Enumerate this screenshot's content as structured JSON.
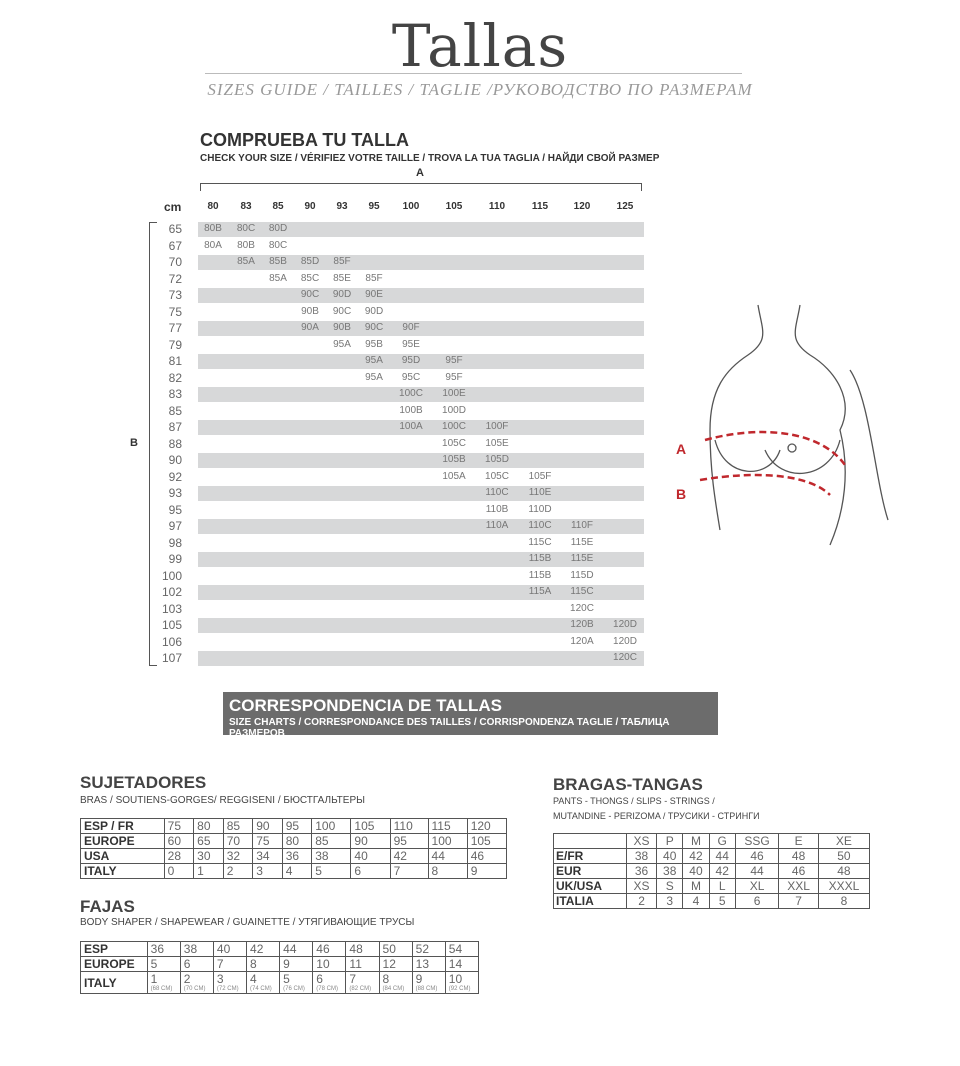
{
  "header": {
    "title": "Tallas",
    "subtitle": "SIZES GUIDE / TAILLES / TAGLIE /РУКОВОДСТВО ПО РАЗМЕРАМ"
  },
  "check": {
    "heading": "COMPRUEBA TU TALLA",
    "subheading": "CHECK YOUR SIZE / VÉRIFIEZ VOTRE TAILLE / TROVA LA TUA TAGLIA / НАЙДИ СВОЙ РАЗМЕР",
    "axis_a": "A",
    "axis_b": "B",
    "unit": "cm",
    "columns": [
      "80",
      "83",
      "85",
      "90",
      "93",
      "95",
      "100",
      "105",
      "110",
      "115",
      "120",
      "125"
    ],
    "rows": [
      {
        "b": "65",
        "start": 0,
        "cells": [
          "80B",
          "80C",
          "80D"
        ]
      },
      {
        "b": "67",
        "start": 0,
        "cells": [
          "80A",
          "80B",
          "80C"
        ]
      },
      {
        "b": "70",
        "start": 1,
        "cells": [
          "85A",
          "85B",
          "85D",
          "85F"
        ]
      },
      {
        "b": "72",
        "start": 2,
        "cells": [
          "85A",
          "85C",
          "85E",
          "85F"
        ]
      },
      {
        "b": "73",
        "start": 3,
        "cells": [
          "90C",
          "90D",
          "90E"
        ]
      },
      {
        "b": "75",
        "start": 3,
        "cells": [
          "90B",
          "90C",
          "90D"
        ]
      },
      {
        "b": "77",
        "start": 3,
        "cells": [
          "90A",
          "90B",
          "90C",
          "90F"
        ]
      },
      {
        "b": "79",
        "start": 4,
        "cells": [
          "95A",
          "95B",
          "95E"
        ]
      },
      {
        "b": "81",
        "start": 5,
        "cells": [
          "95A",
          "95D",
          "95F"
        ]
      },
      {
        "b": "82",
        "start": 5,
        "cells": [
          "95A",
          "95C",
          "95F"
        ]
      },
      {
        "b": "83",
        "start": 6,
        "cells": [
          "100C",
          "100E"
        ]
      },
      {
        "b": "85",
        "start": 6,
        "cells": [
          "100B",
          "100D"
        ]
      },
      {
        "b": "87",
        "start": 6,
        "cells": [
          "100A",
          "100C",
          "100F"
        ]
      },
      {
        "b": "88",
        "start": 7,
        "cells": [
          "105C",
          "105E"
        ]
      },
      {
        "b": "90",
        "start": 7,
        "cells": [
          "105B",
          "105D"
        ]
      },
      {
        "b": "92",
        "start": 7,
        "cells": [
          "105A",
          "105C",
          "105F"
        ]
      },
      {
        "b": "93",
        "start": 8,
        "cells": [
          "110C",
          "110E"
        ]
      },
      {
        "b": "95",
        "start": 8,
        "cells": [
          "110B",
          "110D"
        ]
      },
      {
        "b": "97",
        "start": 8,
        "cells": [
          "110A",
          "110C",
          "110F"
        ]
      },
      {
        "b": "98",
        "start": 9,
        "cells": [
          "115C",
          "115E"
        ]
      },
      {
        "b": "99",
        "start": 9,
        "cells": [
          "115B",
          "115E"
        ]
      },
      {
        "b": "100",
        "start": 9,
        "cells": [
          "115B",
          "115D"
        ]
      },
      {
        "b": "102",
        "start": 9,
        "cells": [
          "115A",
          "115C"
        ]
      },
      {
        "b": "103",
        "start": 10,
        "cells": [
          "120C"
        ]
      },
      {
        "b": "105",
        "start": 10,
        "cells": [
          "120B",
          "120D"
        ]
      },
      {
        "b": "106",
        "start": 10,
        "cells": [
          "120A",
          "120D"
        ]
      },
      {
        "b": "107",
        "start": 11,
        "cells": [
          "120C"
        ]
      }
    ]
  },
  "figure": {
    "label_a": "A",
    "label_b": "B",
    "accent": "#c0282d"
  },
  "correspondence": {
    "heading": "CORRESPONDENCIA DE TALLAS",
    "subheading": "SIZE CHARTS / CORRESPONDANCE DES TAILLES / CORRISPONDENZA TAGLIE / ТАБЛИЦА РАЗМЕРОВ"
  },
  "bras": {
    "heading": "SUJETADORES",
    "subheading": "BRAS / SOUTIENS-GORGES/ REGGISENI / БЮСТГАЛЬТЕРЫ",
    "rows": [
      [
        "ESP / FR",
        "75",
        "80",
        "85",
        "90",
        "95",
        "100",
        "105",
        "110",
        "115",
        "120"
      ],
      [
        "EUROPE",
        "60",
        "65",
        "70",
        "75",
        "80",
        "85",
        "90",
        "95",
        "100",
        "105"
      ],
      [
        "USA",
        "28",
        "30",
        "32",
        "34",
        "36",
        "38",
        "40",
        "42",
        "44",
        "46"
      ],
      [
        "ITALY",
        "0",
        "1",
        "2",
        "3",
        "4",
        "5",
        "6",
        "7",
        "8",
        "9"
      ]
    ]
  },
  "shaper": {
    "heading": "FAJAS",
    "subheading": "BODY SHAPER / SHAPEWEAR / GUAINETTE / УТЯГИВАЮЩИЕ ТРУСЫ",
    "rows": [
      [
        "ESP",
        "36",
        "38",
        "40",
        "42",
        "44",
        "46",
        "48",
        "50",
        "52",
        "54"
      ],
      [
        "EUROPE",
        "5",
        "6",
        "7",
        "8",
        "9",
        "10",
        "11",
        "12",
        "13",
        "14"
      ],
      [
        "ITALY",
        "1",
        "2",
        "3",
        "4",
        "5",
        "6",
        "7",
        "8",
        "9",
        "10"
      ]
    ],
    "italy_cm": [
      "(68 CM)",
      "(70 CM)",
      "(72 CM)",
      "(74 CM)",
      "(76 CM)",
      "(78 CM)",
      "(82 CM)",
      "(84 CM)",
      "(88 CM)",
      "(92 CM)"
    ]
  },
  "pants": {
    "heading": "BRAGAS-TANGAS",
    "subheading_1": "PANTS - THONGS / SLIPS - STRINGS /",
    "subheading_2": "MUTANDINE - PERIZOMA / ТРУСИКИ - СТРИНГИ",
    "rows": [
      [
        "",
        "XS",
        "P",
        "M",
        "G",
        "SSG",
        "E",
        "XE"
      ],
      [
        "E/FR",
        "38",
        "40",
        "42",
        "44",
        "46",
        "48",
        "50"
      ],
      [
        "EUR",
        "36",
        "38",
        "40",
        "42",
        "44",
        "46",
        "48"
      ],
      [
        "UK/USA",
        "XS",
        "S",
        "M",
        "L",
        "XL",
        "XXL",
        "XXXL"
      ],
      [
        "ITALIA",
        "2",
        "3",
        "4",
        "5",
        "6",
        "7",
        "8"
      ]
    ]
  }
}
